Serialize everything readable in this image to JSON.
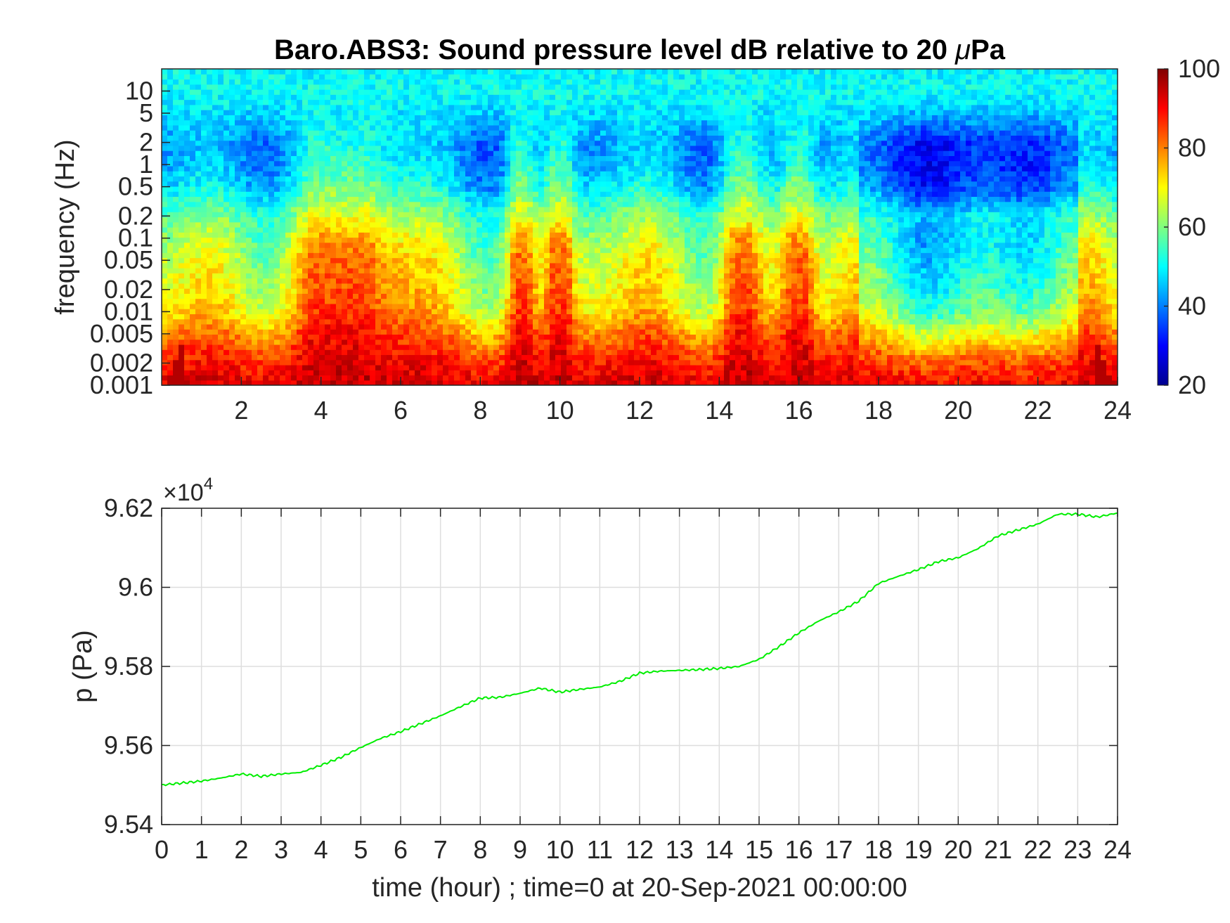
{
  "chart_data": [
    {
      "type": "heatmap",
      "title": "Baro.ABS3: Sound pressure level dB relative to 20 μPa",
      "title_main": "Baro.ABS3: Sound pressure level dB relative to 20 ",
      "title_mu": "μ",
      "title_tail": "Pa",
      "ylabel": "frequency (Hz)",
      "xlabel": "",
      "xlim": [
        0,
        24
      ],
      "x_ticks": [
        2,
        4,
        6,
        8,
        10,
        12,
        14,
        16,
        18,
        20,
        22,
        24
      ],
      "y_scale": "log",
      "ylim": [
        0.001,
        20
      ],
      "y_ticks": [
        0.001,
        0.002,
        0.005,
        0.01,
        0.02,
        0.05,
        0.1,
        0.2,
        0.5,
        1,
        2,
        5,
        10
      ],
      "y_tick_labels": [
        "0.001",
        "0.002",
        "0.005",
        "0.01",
        "0.02",
        "0.05",
        "0.1",
        "0.2",
        "0.5",
        "1",
        "2",
        "5",
        "10"
      ],
      "colormap": "jet",
      "colorbar": {
        "range": [
          20,
          100
        ],
        "ticks": [
          20,
          40,
          60,
          80,
          100
        ],
        "tick_labels": [
          "20",
          "40",
          "60",
          "80",
          "100"
        ]
      },
      "background_color": "#00ffff",
      "band_profile_db": {
        "freq_hz": [
          20,
          10,
          5,
          2,
          1,
          0.5,
          0.2,
          0.1,
          0.05,
          0.02,
          0.01,
          0.005,
          0.002,
          0.001
        ],
        "quiet_db": [
          50,
          50,
          44,
          30,
          29,
          31,
          45,
          42,
          44,
          48,
          53,
          66,
          82,
          90
        ],
        "loud_db": [
          50,
          51,
          50,
          52,
          55,
          60,
          68,
          78,
          82,
          84,
          86,
          90,
          93,
          95
        ]
      },
      "events": [
        {
          "time_h": 4.5,
          "width_h": 1.3,
          "peak_freq_hz": 0.05,
          "level_db": 80
        },
        {
          "time_h": 9.0,
          "width_h": 0.35,
          "peak_freq_hz": 0.02,
          "level_db": 85
        },
        {
          "time_h": 10.0,
          "width_h": 0.3,
          "peak_freq_hz": 0.005,
          "level_db": 84
        },
        {
          "time_h": 14.5,
          "width_h": 0.5,
          "peak_freq_hz": 0.05,
          "level_db": 78
        },
        {
          "time_h": 16.0,
          "width_h": 0.4,
          "peak_freq_hz": 0.05,
          "level_db": 72
        }
      ]
    },
    {
      "type": "line",
      "title": "",
      "xlabel": "time (hour) ; time=0 at 20-Sep-2021 00:00:00",
      "ylabel": "p (Pa)",
      "xlim": [
        0,
        24
      ],
      "ylim": [
        95400,
        96200
      ],
      "exponent_label": "×10",
      "exponent_power": "4",
      "x_ticks": [
        0,
        1,
        2,
        3,
        4,
        5,
        6,
        7,
        8,
        9,
        10,
        11,
        12,
        13,
        14,
        15,
        16,
        17,
        18,
        19,
        20,
        21,
        22,
        23,
        24
      ],
      "y_ticks": [
        95400,
        95600,
        95800,
        96000,
        96200
      ],
      "y_tick_labels": [
        "9.54",
        "9.56",
        "9.58",
        "9.6",
        "9.62"
      ],
      "grid": true,
      "series": [
        {
          "color": "#00ee00",
          "x": [
            0,
            0.5,
            1,
            1.5,
            2,
            2.5,
            3,
            3.5,
            4,
            4.5,
            5,
            5.5,
            6,
            6.5,
            7,
            7.5,
            8,
            8.5,
            9,
            9.5,
            10,
            10.5,
            11,
            11.5,
            12,
            12.5,
            13,
            13.5,
            14,
            14.5,
            15,
            15.5,
            16,
            16.5,
            17,
            17.5,
            18,
            18.5,
            19,
            19.5,
            20,
            20.5,
            21,
            21.5,
            22,
            22.5,
            23,
            23.5,
            24
          ],
          "y": [
            95500,
            95505,
            95510,
            95518,
            95528,
            95522,
            95528,
            95532,
            95550,
            95570,
            95595,
            95618,
            95635,
            95655,
            95675,
            95698,
            95720,
            95722,
            95732,
            95745,
            95735,
            95742,
            95748,
            95762,
            95783,
            95788,
            95790,
            95792,
            95795,
            95800,
            95818,
            95850,
            95885,
            95915,
            95938,
            95965,
            96010,
            96028,
            96045,
            96065,
            96075,
            96098,
            96130,
            96145,
            96160,
            96185,
            96185,
            96178,
            96188
          ]
        }
      ]
    }
  ]
}
